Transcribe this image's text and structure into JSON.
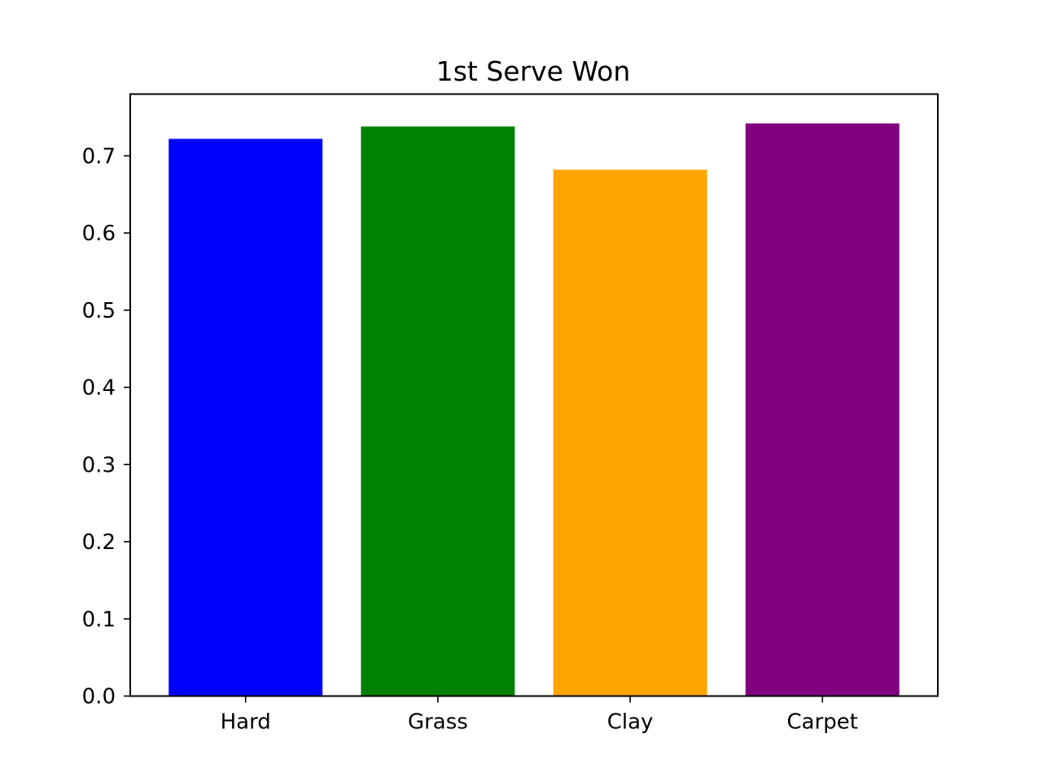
{
  "chart_data": {
    "type": "bar",
    "title": "1st Serve Won",
    "xlabel": "",
    "ylabel": "",
    "categories": [
      "Hard",
      "Grass",
      "Clay",
      "Carpet"
    ],
    "values": [
      0.722,
      0.738,
      0.682,
      0.742
    ],
    "colors": [
      "#0000ff",
      "#008000",
      "#ffa500",
      "#800080"
    ],
    "ylim": [
      0,
      0.78
    ],
    "yticks": [
      "0.0",
      "0.1",
      "0.2",
      "0.3",
      "0.4",
      "0.5",
      "0.6",
      "0.7"
    ],
    "grid": false,
    "legend": "none"
  }
}
